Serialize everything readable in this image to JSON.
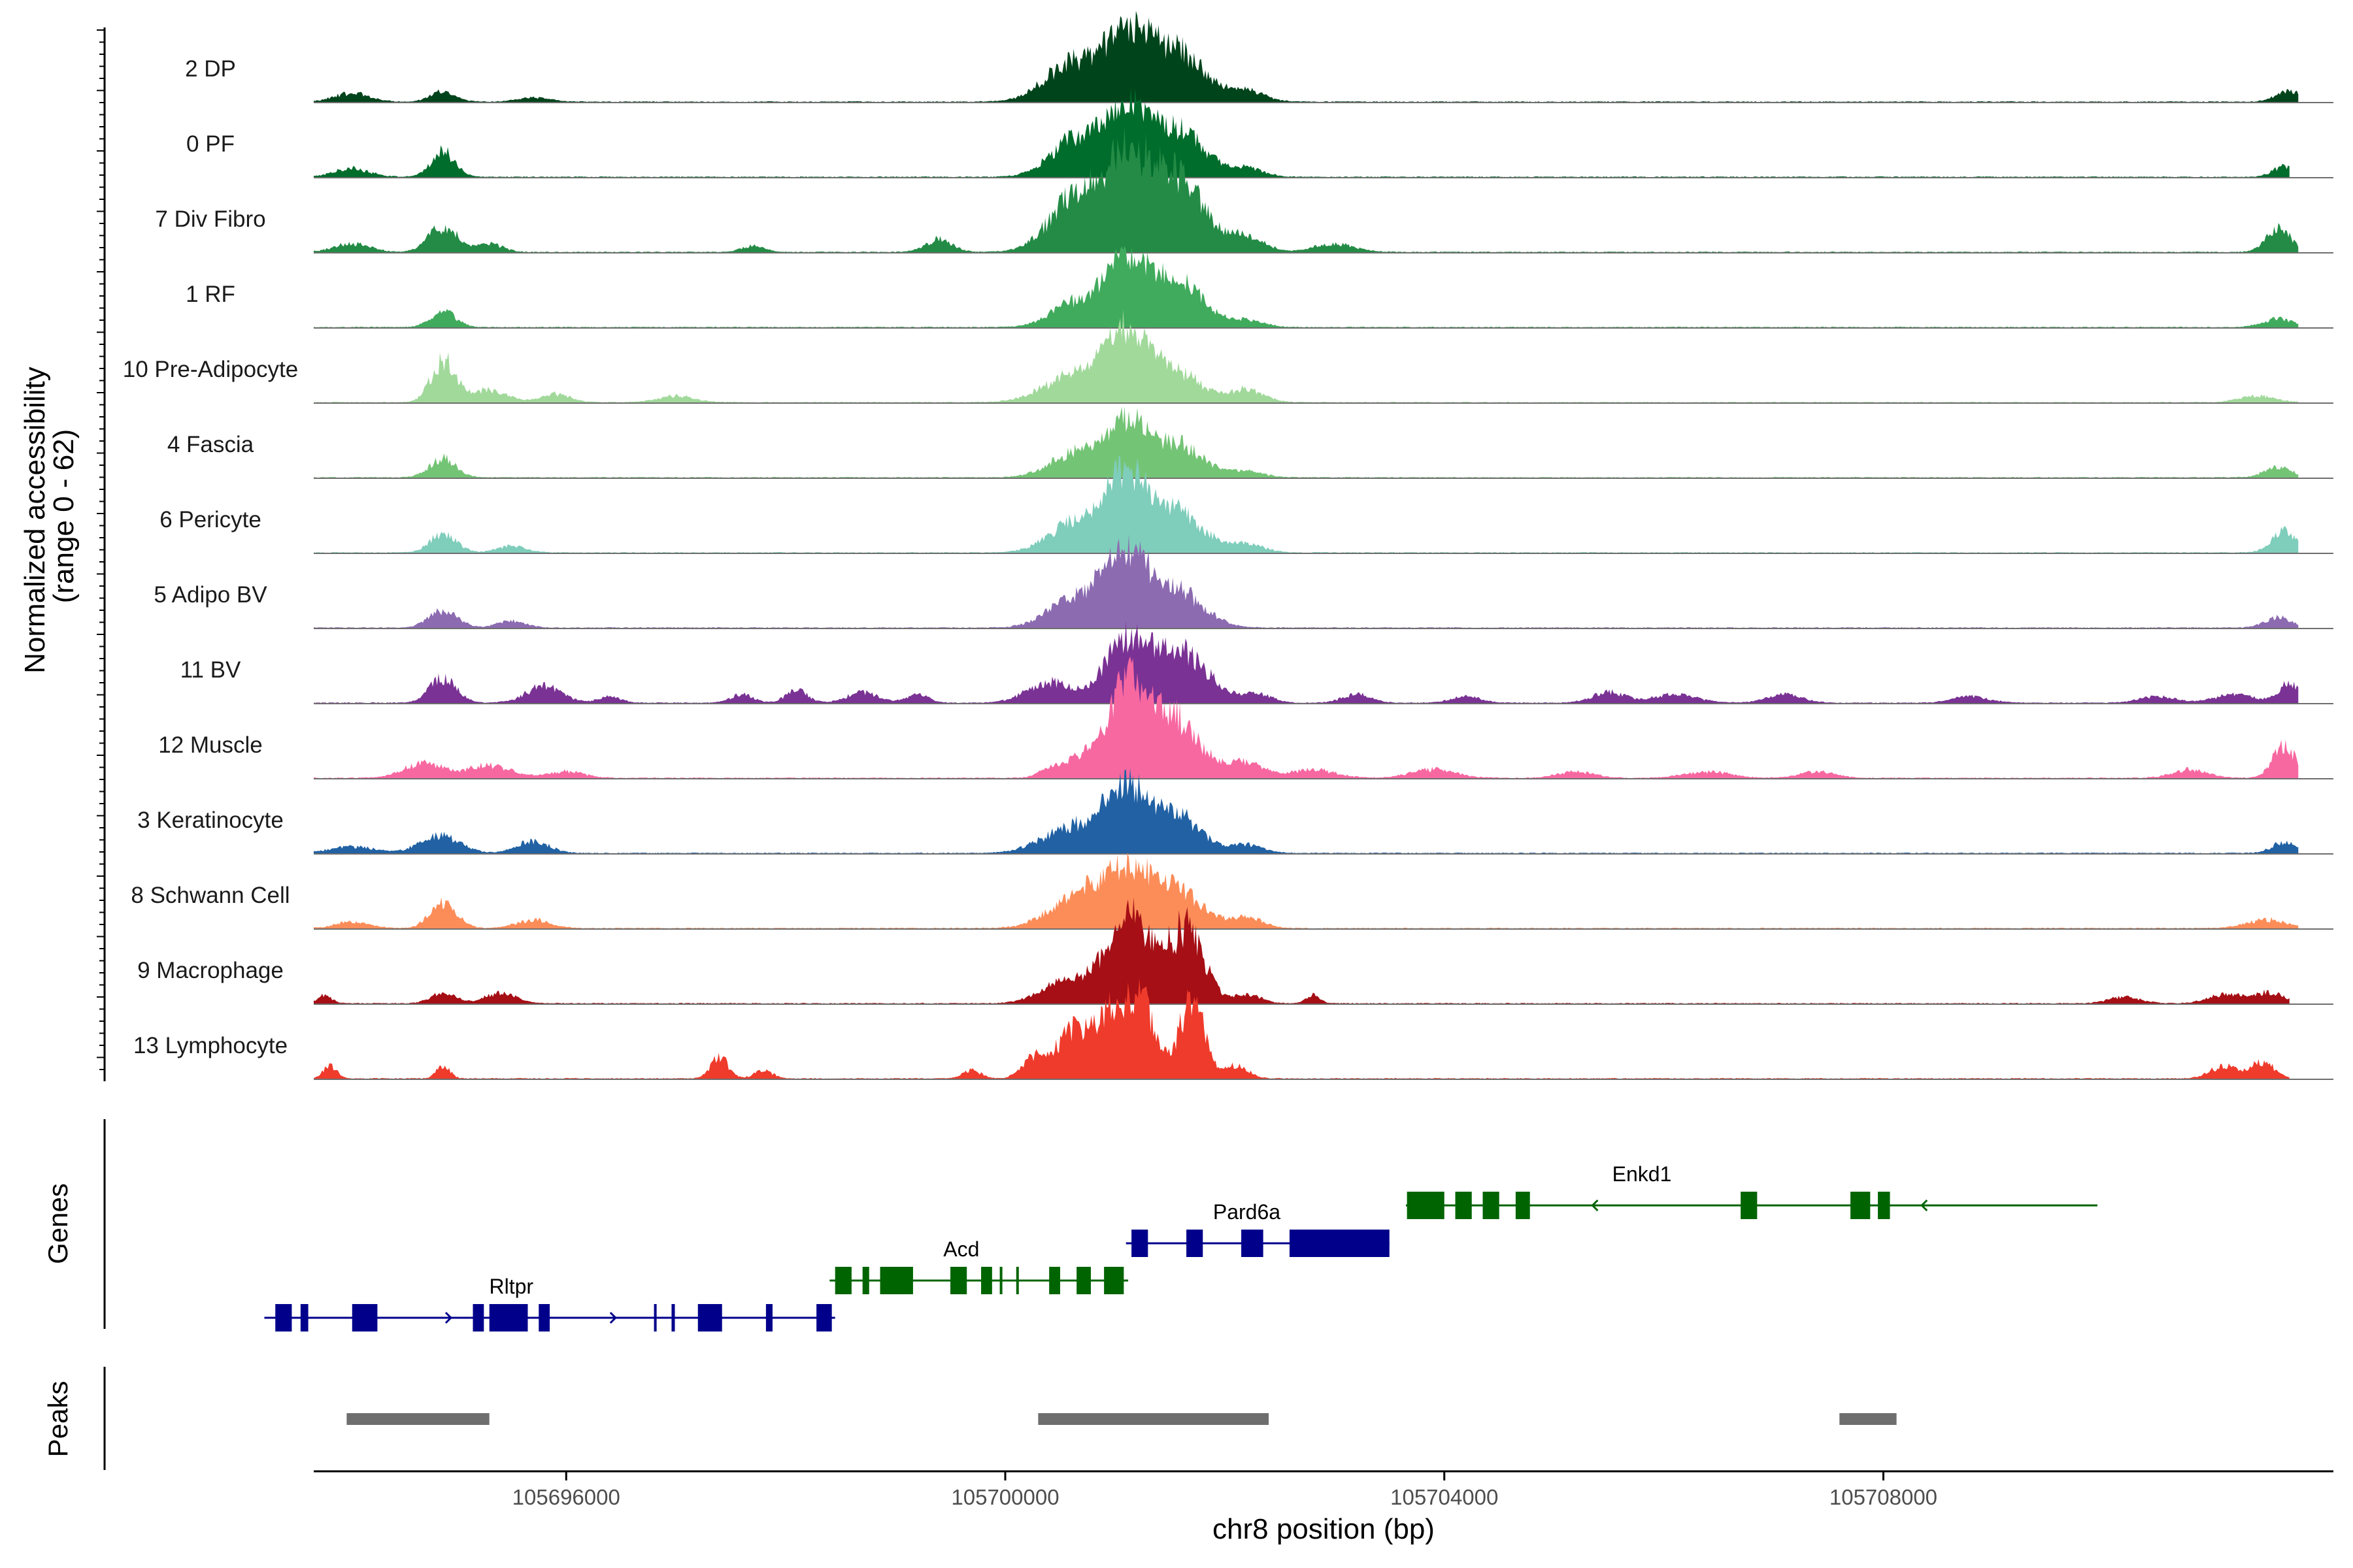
{
  "chart_data": {
    "type": "area",
    "title": "",
    "xlabel": "chr8 position (bp)",
    "ylabel": "Normalized accessibility\n(range 0 - 62)",
    "ylabel_lines": [
      "Normalized accessibility",
      "(range 0 - 62)"
    ],
    "y_range": [
      0,
      62
    ],
    "xlim": [
      105693700,
      105712100
    ],
    "x_ticks": [
      105696000,
      105700000,
      105704000,
      105708000
    ],
    "x_tick_labels": [
      "105696000",
      "105700000",
      "105704000",
      "105708000"
    ],
    "panel_labels": {
      "genes": "Genes",
      "peaks": "Peaks"
    },
    "tracks": [
      {
        "name": "2 DP",
        "color": "#00441b",
        "region_start": 105693700,
        "region_end": 105711780,
        "peaks": [
          [
            105694050,
            4,
            160
          ],
          [
            105694880,
            5,
            110
          ],
          [
            105695700,
            2,
            150
          ],
          [
            105700600,
            18,
            240
          ],
          [
            105701100,
            30,
            200
          ],
          [
            105701550,
            24,
            250
          ],
          [
            105702200,
            5,
            160
          ],
          [
            105711700,
            5,
            120
          ]
        ]
      },
      {
        "name": "0 PF",
        "color": "#006d2c",
        "region_start": 105693700,
        "region_end": 105711700,
        "peaks": [
          [
            105694050,
            4,
            160
          ],
          [
            105694880,
            12,
            110
          ],
          [
            105700650,
            18,
            230
          ],
          [
            105701100,
            29,
            190
          ],
          [
            105701550,
            22,
            250
          ],
          [
            105702200,
            4,
            150
          ],
          [
            105711650,
            5,
            100
          ]
        ]
      },
      {
        "name": "7 Div Fibro",
        "color": "#238b45",
        "region_start": 105693700,
        "region_end": 105711780,
        "peaks": [
          [
            105694050,
            4,
            160
          ],
          [
            105694880,
            12,
            130
          ],
          [
            105695300,
            4,
            120
          ],
          [
            105697700,
            3,
            100
          ],
          [
            105699400,
            6,
            120
          ],
          [
            105700650,
            26,
            240
          ],
          [
            105701100,
            38,
            190
          ],
          [
            105701550,
            36,
            250
          ],
          [
            105702200,
            7,
            160
          ],
          [
            105703000,
            4,
            180
          ],
          [
            105711600,
            12,
            110
          ]
        ]
      },
      {
        "name": "1 RF",
        "color": "#41ab5d",
        "region_start": 105693700,
        "region_end": 105711780,
        "peaks": [
          [
            105694880,
            8,
            110
          ],
          [
            105700650,
            12,
            220
          ],
          [
            105701100,
            30,
            180
          ],
          [
            105701550,
            22,
            240
          ],
          [
            105702200,
            3,
            160
          ],
          [
            105711600,
            4,
            140
          ]
        ]
      },
      {
        "name": "10 Pre-Adipocyte",
        "color": "#a1d99b",
        "region_start": 105693700,
        "region_end": 105711780,
        "peaks": [
          [
            105694880,
            20,
            110
          ],
          [
            105695300,
            6,
            160
          ],
          [
            105695900,
            4,
            130
          ],
          [
            105697000,
            3,
            160
          ],
          [
            105700600,
            12,
            260
          ],
          [
            105701100,
            32,
            200
          ],
          [
            105701550,
            14,
            230
          ],
          [
            105702200,
            6,
            150
          ],
          [
            105711400,
            3,
            160
          ]
        ]
      },
      {
        "name": "4 Fascia",
        "color": "#74c476",
        "region_start": 105693700,
        "region_end": 105711780,
        "peaks": [
          [
            105694880,
            9,
            120
          ],
          [
            105700650,
            12,
            230
          ],
          [
            105701100,
            24,
            180
          ],
          [
            105701550,
            16,
            240
          ],
          [
            105702200,
            3,
            150
          ],
          [
            105711600,
            5,
            120
          ]
        ]
      },
      {
        "name": "6 Pericyte",
        "color": "#7fcdbb",
        "region_start": 105693700,
        "region_end": 105711780,
        "peaks": [
          [
            105694880,
            9,
            120
          ],
          [
            105695500,
            3,
            130
          ],
          [
            105700650,
            14,
            240
          ],
          [
            105701100,
            34,
            190
          ],
          [
            105701550,
            20,
            240
          ],
          [
            105702200,
            4,
            150
          ],
          [
            105711650,
            10,
            110
          ]
        ]
      },
      {
        "name": "5 Adipo BV",
        "color": "#8c6bb1",
        "region_start": 105693700,
        "region_end": 105711780,
        "peaks": [
          [
            105694880,
            8,
            130
          ],
          [
            105695500,
            3,
            130
          ],
          [
            105700650,
            14,
            240
          ],
          [
            105701100,
            33,
            190
          ],
          [
            105701550,
            18,
            240
          ],
          [
            105711600,
            5,
            120
          ]
        ]
      },
      {
        "name": "11 BV",
        "color": "#7a3294",
        "region_start": 105693700,
        "region_end": 105711780,
        "peaks": [
          [
            105694880,
            12,
            120
          ],
          [
            105695800,
            8,
            160
          ],
          [
            105696400,
            3,
            100
          ],
          [
            105697600,
            4,
            100
          ],
          [
            105698100,
            6,
            100
          ],
          [
            105698700,
            5,
            140
          ],
          [
            105699200,
            4,
            100
          ],
          [
            105700400,
            10,
            200
          ],
          [
            105701100,
            28,
            200
          ],
          [
            105701600,
            24,
            250
          ],
          [
            105702300,
            4,
            130
          ],
          [
            105703200,
            4,
            130
          ],
          [
            105704200,
            3,
            130
          ],
          [
            105705500,
            5,
            150
          ],
          [
            105706100,
            4,
            200
          ],
          [
            105707100,
            4,
            160
          ],
          [
            105708800,
            3,
            160
          ],
          [
            105710500,
            3,
            160
          ],
          [
            105711200,
            4,
            180
          ],
          [
            105711700,
            9,
            100
          ]
        ]
      },
      {
        "name": "12 Muscle",
        "color": "#f768a1",
        "region_start": 105693700,
        "region_end": 105711780,
        "peaks": [
          [
            105694700,
            7,
            180
          ],
          [
            105695300,
            6,
            200
          ],
          [
            105696000,
            3,
            160
          ],
          [
            105700400,
            4,
            100
          ],
          [
            105700700,
            10,
            150
          ],
          [
            105701100,
            38,
            170
          ],
          [
            105701500,
            30,
            250
          ],
          [
            105702200,
            7,
            160
          ],
          [
            105702800,
            4,
            200
          ],
          [
            105703900,
            4,
            200
          ],
          [
            105705200,
            3,
            160
          ],
          [
            105706400,
            3,
            200
          ],
          [
            105707400,
            3,
            160
          ],
          [
            105710800,
            4,
            160
          ],
          [
            105711650,
            16,
            100
          ]
        ]
      },
      {
        "name": "3 Keratinocyte",
        "color": "#2161a4",
        "region_start": 105693700,
        "region_end": 105711780,
        "peaks": [
          [
            105694050,
            3,
            200
          ],
          [
            105694850,
            8,
            180
          ],
          [
            105695700,
            6,
            140
          ],
          [
            105700600,
            12,
            260
          ],
          [
            105701100,
            28,
            200
          ],
          [
            105701550,
            18,
            220
          ],
          [
            105702200,
            4,
            150
          ],
          [
            105711650,
            5,
            110
          ]
        ]
      },
      {
        "name": "8 Schwann Cell",
        "color": "#fc8d59",
        "region_start": 105693700,
        "region_end": 105711780,
        "peaks": [
          [
            105694050,
            3,
            150
          ],
          [
            105694880,
            12,
            120
          ],
          [
            105695700,
            4,
            150
          ],
          [
            105700650,
            14,
            250
          ],
          [
            105701100,
            25,
            220
          ],
          [
            105701550,
            17,
            240
          ],
          [
            105702200,
            5,
            150
          ],
          [
            105711500,
            4,
            180
          ]
        ]
      },
      {
        "name": "9 Macrophage",
        "color": "#a50f15",
        "region_start": 105693700,
        "region_end": 105711700,
        "peaks": [
          [
            105693800,
            4,
            60
          ],
          [
            105694880,
            5,
            110
          ],
          [
            105695400,
            5,
            140
          ],
          [
            105700500,
            10,
            200
          ],
          [
            105700900,
            16,
            160
          ],
          [
            105701200,
            38,
            160
          ],
          [
            105701650,
            36,
            160
          ],
          [
            105702200,
            4,
            130
          ],
          [
            105702800,
            4,
            60
          ],
          [
            105710200,
            3,
            140
          ],
          [
            105711100,
            4,
            150
          ],
          [
            105711500,
            5,
            160
          ]
        ]
      },
      {
        "name": "13 Lymphocyte",
        "color": "#ef3b2c",
        "region_start": 105693700,
        "region_end": 105711700,
        "peaks": [
          [
            105693850,
            6,
            60
          ],
          [
            105694880,
            6,
            60
          ],
          [
            105697400,
            10,
            80
          ],
          [
            105697800,
            4,
            80
          ],
          [
            105699700,
            4,
            80
          ],
          [
            105700250,
            10,
            100
          ],
          [
            105700600,
            22,
            140
          ],
          [
            105700950,
            30,
            150
          ],
          [
            105701250,
            34,
            130
          ],
          [
            105701700,
            38,
            110
          ],
          [
            105702100,
            6,
            110
          ],
          [
            105711100,
            6,
            120
          ],
          [
            105711450,
            8,
            110
          ]
        ]
      }
    ],
    "genes": [
      {
        "name": "Rltpr",
        "strand": "+",
        "color": "#00008b",
        "row": 3,
        "start": 105693250,
        "end": 105698450,
        "label_x": 105695500,
        "exons": [
          [
            105693350,
            105693500
          ],
          [
            105693580,
            105693650
          ],
          [
            105694050,
            105694280
          ],
          [
            105695150,
            105695250
          ],
          [
            105695300,
            105695650
          ],
          [
            105695750,
            105695850
          ],
          [
            105696800,
            105696820
          ],
          [
            105696960,
            105696990
          ],
          [
            105697200,
            105697420
          ],
          [
            105697820,
            105697880
          ],
          [
            105698280,
            105698420
          ]
        ]
      },
      {
        "name": "Acd",
        "strand": "-",
        "color": "#006400",
        "row": 2,
        "start": 105698400,
        "end": 105701120,
        "label_x": 105699600,
        "exons": [
          [
            105698450,
            105698600
          ],
          [
            105698700,
            105698760
          ],
          [
            105698860,
            105699160
          ],
          [
            105699500,
            105699650
          ],
          [
            105699780,
            105699880
          ],
          [
            105699950,
            105699970
          ],
          [
            105700100,
            105700120
          ],
          [
            105700400,
            105700500
          ],
          [
            105700650,
            105700780
          ],
          [
            105700900,
            105701080
          ]
        ]
      },
      {
        "name": "Pard6a",
        "strand": "+",
        "color": "#00008b",
        "row": 1,
        "start": 105701100,
        "end": 105703500,
        "label_x": 105702200,
        "exons": [
          [
            105701150,
            105701300
          ],
          [
            105701650,
            105701800
          ],
          [
            105702150,
            105702350
          ],
          [
            105702590,
            105703500
          ]
        ]
      },
      {
        "name": "Enkd1",
        "strand": "-",
        "color": "#006400",
        "row": 0,
        "start": 105703650,
        "end": 105709950,
        "label_x": 105705800,
        "exons": [
          [
            105703660,
            105704000
          ],
          [
            105704100,
            105704250
          ],
          [
            105704350,
            105704500
          ],
          [
            105704650,
            105704780
          ],
          [
            105706700,
            105706850
          ],
          [
            105707700,
            105707880
          ],
          [
            105707950,
            105708060
          ]
        ]
      }
    ],
    "peaks_track": [
      [
        105694000,
        105695300
      ],
      [
        105700300,
        105702400
      ],
      [
        105707600,
        105708120
      ]
    ]
  }
}
